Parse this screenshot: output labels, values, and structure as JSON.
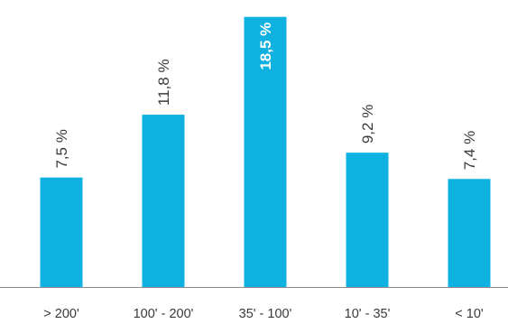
{
  "chart_data": {
    "type": "bar",
    "categories": [
      "> 200'",
      "100' - 200'",
      "35' - 100'",
      "10' - 35'",
      "< 10'"
    ],
    "values": [
      7.5,
      11.8,
      18.5,
      9.2,
      7.4
    ],
    "value_labels": [
      "7,5 %",
      "11,8 %",
      "18,5 %",
      "9,2 %",
      "7,4 %"
    ],
    "highlight_index": 2,
    "title": "",
    "xlabel": "",
    "ylabel": "",
    "ylim": [
      0,
      19.1
    ],
    "grid": false,
    "legend": "none",
    "bar_color": "#0fb1e0",
    "axis_color": "#8a8a8a",
    "text_color": "#3a3a3a"
  }
}
